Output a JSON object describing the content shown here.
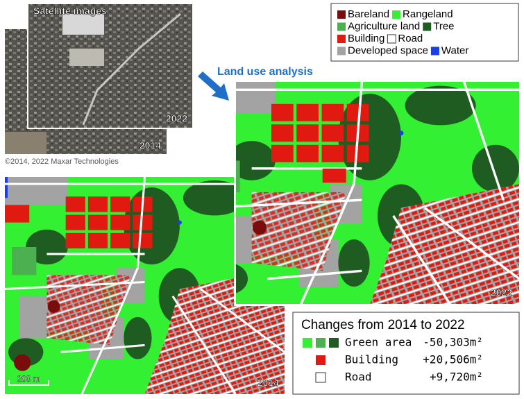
{
  "satellite": {
    "title": "Satellite images",
    "labels": [
      "2022",
      "2014"
    ],
    "credit": "©2014, 2022 Maxar Technologies"
  },
  "legend": [
    {
      "label": "Bareland",
      "color": "#7a0c0c"
    },
    {
      "label": "Rangeland",
      "color": "#33f033"
    },
    {
      "label": "Agriculture land",
      "color": "#4caf50"
    },
    {
      "label": "Tree",
      "color": "#1f5c22"
    },
    {
      "label": "Building",
      "color": "#e01a10"
    },
    {
      "label": "Road",
      "color": "#ffffff"
    },
    {
      "label": "Developed space",
      "color": "#a3a3a3"
    },
    {
      "label": "Water",
      "color": "#1a3fe6"
    }
  ],
  "arrow_label": "Land use analysis",
  "maps": {
    "labels": [
      "2022",
      "2014"
    ],
    "scale": "200 m"
  },
  "changes": {
    "title": "Changes from 2014 to 2022",
    "rows": [
      {
        "label": "Green area",
        "value": "-50,303m²",
        "colors": [
          "#33f033",
          "#4caf50",
          "#1f5c22"
        ]
      },
      {
        "label": "Building",
        "value": "+20,506m²",
        "colors": [
          "#e01a10"
        ]
      },
      {
        "label": "Road",
        "value": "+9,720m²",
        "colors": [
          "#ffffff"
        ]
      }
    ]
  }
}
